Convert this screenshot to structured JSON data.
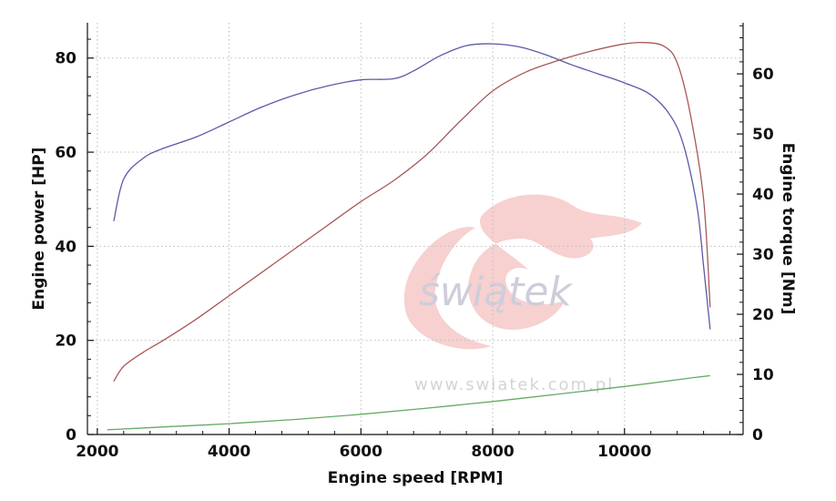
{
  "chart_data": {
    "type": "line",
    "xlabel": "Engine speed [RPM]",
    "ylabel_left": "Engine power [HP]",
    "ylabel_right": "Engine torque [Nm]",
    "xlim": [
      1850,
      11800
    ],
    "ylim_left": [
      0,
      87.5
    ],
    "ylim_right": [
      0,
      68.5
    ],
    "x_ticks": [
      2000,
      4000,
      6000,
      8000,
      10000
    ],
    "y_left_ticks": [
      0,
      20,
      40,
      60,
      80
    ],
    "y_right_ticks": [
      0,
      10,
      20,
      30,
      40,
      50,
      60
    ],
    "grid": true,
    "series": [
      {
        "color": "#5a5aa8",
        "axis": "right",
        "x": [
          2250,
          2400,
          2700,
          3000,
          3500,
          4000,
          4500,
          5000,
          5500,
          6000,
          6500,
          6800,
          7200,
          7600,
          8000,
          8400,
          8800,
          9200,
          9600,
          10000,
          10400,
          10700,
          10900,
          11100,
          11200,
          11300
        ],
        "values": [
          35.5,
          42.5,
          46,
          47.6,
          49.5,
          52,
          54.5,
          56.5,
          58,
          59,
          59.2,
          60.5,
          63,
          64.7,
          65,
          64.5,
          63.2,
          61.5,
          60,
          58.5,
          56.5,
          53,
          48,
          38,
          28,
          17.5
        ]
      },
      {
        "color": "#a85858",
        "axis": "left",
        "x": [
          2250,
          2400,
          2700,
          3000,
          3500,
          4000,
          4500,
          5000,
          5500,
          6000,
          6500,
          7000,
          7500,
          8000,
          8500,
          9000,
          9500,
          10000,
          10300,
          10600,
          10800,
          11000,
          11200,
          11300
        ],
        "values": [
          11.3,
          14.5,
          17.5,
          20,
          24.5,
          29.5,
          34.5,
          39.5,
          44.5,
          49.5,
          54,
          59.5,
          66.5,
          73,
          77,
          79.5,
          81.5,
          83,
          83.3,
          82.5,
          79,
          68,
          50,
          27
        ]
      },
      {
        "color": "#66aa66",
        "axis": "left",
        "x": [
          2150,
          3000,
          4000,
          5000,
          6000,
          7000,
          8000,
          9000,
          10000,
          11000,
          11300
        ],
        "values": [
          1,
          1.6,
          2.3,
          3.2,
          4.3,
          5.6,
          7,
          8.6,
          10.2,
          12,
          12.5
        ]
      }
    ]
  },
  "watermark": {
    "brand": "świątek",
    "url": "www.swiatek.com.pl"
  }
}
